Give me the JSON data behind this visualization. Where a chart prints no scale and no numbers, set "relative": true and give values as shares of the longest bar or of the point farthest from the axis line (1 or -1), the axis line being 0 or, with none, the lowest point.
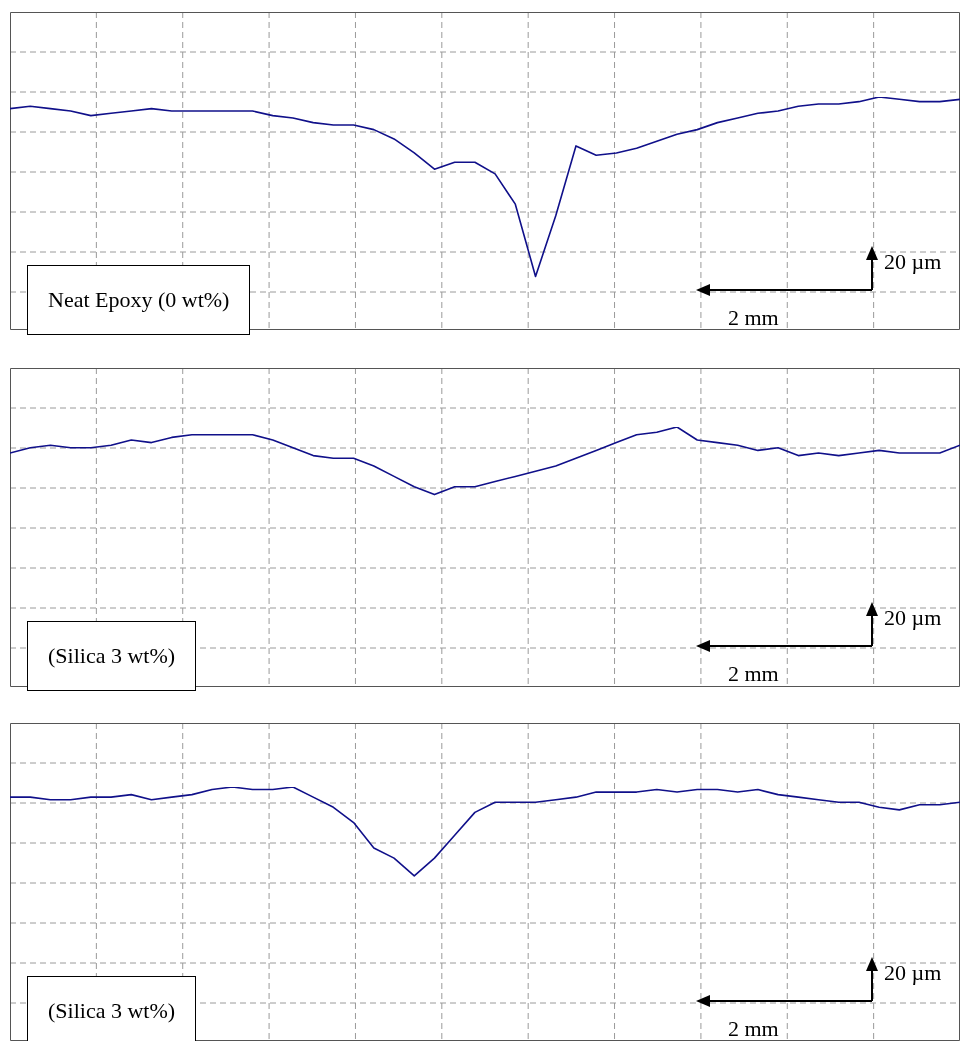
{
  "chart_data": [
    {
      "type": "line",
      "relative": true,
      "grid": true,
      "categories": [
        null,
        null,
        null,
        null,
        null,
        null,
        null,
        null,
        null,
        null,
        null,
        null,
        null,
        null,
        null,
        null,
        null,
        null,
        null,
        null,
        null,
        null,
        null,
        null,
        null,
        null,
        null,
        null,
        null,
        null,
        null,
        null,
        null,
        null,
        null,
        null,
        null,
        null,
        null,
        null,
        null,
        null,
        null,
        null,
        null,
        null,
        null,
        null
      ],
      "series": [
        {
          "color": "#10108a",
          "values": [
            0.95,
            0.96,
            0.95,
            0.94,
            0.92,
            0.93,
            0.94,
            0.95,
            0.94,
            0.94,
            0.94,
            0.94,
            0.94,
            0.92,
            0.91,
            0.89,
            0.88,
            0.88,
            0.86,
            0.82,
            0.76,
            0.69,
            0.72,
            0.72,
            0.67,
            0.54,
            0.23,
            0.49,
            0.79,
            0.75,
            0.76,
            0.78,
            0.81,
            0.84,
            0.86,
            0.89,
            0.91,
            0.93,
            0.94,
            0.96,
            0.97,
            0.97,
            0.98,
            1,
            0.99,
            0.98,
            0.98,
            0.99
          ]
        }
      ],
      "annotations": [
        "Neat Epoxy (0 wt%)",
        "20 µm",
        "2 mm"
      ]
    },
    {
      "type": "line",
      "relative": true,
      "grid": true,
      "categories": [
        null,
        null,
        null,
        null,
        null,
        null,
        null,
        null,
        null,
        null,
        null,
        null,
        null,
        null,
        null,
        null,
        null,
        null,
        null,
        null,
        null,
        null,
        null,
        null,
        null,
        null,
        null,
        null,
        null,
        null,
        null,
        null,
        null,
        null,
        null,
        null,
        null,
        null,
        null,
        null,
        null,
        null,
        null,
        null,
        null,
        null,
        null,
        null
      ],
      "series": [
        {
          "color": "#10108a",
          "values": [
            0.9,
            0.92,
            0.93,
            0.92,
            0.92,
            0.93,
            0.95,
            0.94,
            0.96,
            0.97,
            0.97,
            0.97,
            0.97,
            0.95,
            0.92,
            0.89,
            0.88,
            0.88,
            0.85,
            0.81,
            0.77,
            0.74,
            0.77,
            0.77,
            0.79,
            0.81,
            0.83,
            0.85,
            0.88,
            0.91,
            0.94,
            0.97,
            0.98,
            1,
            0.95,
            0.94,
            0.93,
            0.91,
            0.92,
            0.89,
            0.9,
            0.89,
            0.9,
            0.91,
            0.9,
            0.9,
            0.9,
            0.93
          ]
        }
      ],
      "annotations": [
        "(Silica 3 wt%)",
        "20 µm",
        "2 mm"
      ]
    },
    {
      "type": "line",
      "relative": true,
      "grid": true,
      "categories": [
        null,
        null,
        null,
        null,
        null,
        null,
        null,
        null,
        null,
        null,
        null,
        null,
        null,
        null,
        null,
        null,
        null,
        null,
        null,
        null,
        null,
        null,
        null,
        null,
        null,
        null,
        null,
        null,
        null,
        null,
        null,
        null,
        null,
        null,
        null,
        null,
        null,
        null,
        null,
        null,
        null,
        null,
        null,
        null,
        null,
        null,
        null,
        null
      ],
      "series": [
        {
          "color": "#10108a",
          "values": [
            0.96,
            0.96,
            0.95,
            0.95,
            0.96,
            0.96,
            0.97,
            0.95,
            0.96,
            0.97,
            0.99,
            1,
            0.99,
            0.99,
            1,
            0.96,
            0.92,
            0.86,
            0.76,
            0.72,
            0.65,
            0.72,
            0.81,
            0.9,
            0.94,
            0.94,
            0.94,
            0.95,
            0.96,
            0.98,
            0.98,
            0.98,
            0.99,
            0.98,
            0.99,
            0.99,
            0.98,
            0.99,
            0.97,
            0.96,
            0.95,
            0.94,
            0.94,
            0.92,
            0.91,
            0.93,
            0.93,
            0.94
          ]
        }
      ],
      "annotations": [
        "(Silica 3 wt%)",
        "20 µm",
        "2 mm"
      ]
    }
  ]
}
